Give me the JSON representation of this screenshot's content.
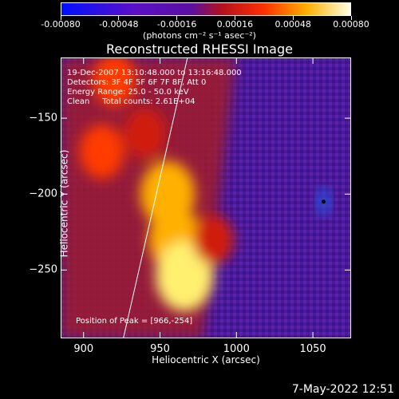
{
  "colorbar": {
    "ticks": [
      "-0.00080",
      "-0.00048",
      "-0.00016",
      "0.00016",
      "0.00048",
      "0.00080"
    ],
    "unit": "(photons cm⁻² s⁻¹ asec⁻²)"
  },
  "chart_data": {
    "type": "heatmap",
    "title": "Reconstructed RHESSI Image",
    "xlabel": "Heliocentric X (arcsec)",
    "ylabel": "Heliocentric Y (arcsec)",
    "xlim": [
      885,
      1075
    ],
    "ylim": [
      -295,
      -110
    ],
    "x_ticks": [
      900,
      950,
      1000,
      1050
    ],
    "y_ticks": [
      -150,
      -200,
      -250
    ],
    "info_lines": [
      "19-Dec-2007 13:10:48.000 to 13:16:48.000",
      "Detectors: 3F 4F 5F 6F 7F 8F, Att 0",
      "Energy Range: 25.0 - 50.0 keV",
      "Clean     Total counts: 2.61E+04"
    ],
    "peak_label": "Position of Peak = [966,-254]",
    "peak": [
      966,
      -254
    ],
    "limb": [
      [
        926,
        -295
      ],
      [
        968,
        -110
      ]
    ],
    "bright_blobs": [
      {
        "x": 912,
        "y": -172,
        "level": 0.55
      },
      {
        "x": 920,
        "y": -125,
        "level": 0.5
      },
      {
        "x": 955,
        "y": -200,
        "level": 0.9
      },
      {
        "x": 960,
        "y": -230,
        "level": 0.85
      },
      {
        "x": 966,
        "y": -254,
        "level": 1.0
      },
      {
        "x": 940,
        "y": -160,
        "level": 0.45
      },
      {
        "x": 985,
        "y": -230,
        "level": 0.4
      }
    ],
    "min_marker": {
      "x": 1057,
      "y": -205
    }
  },
  "timestamp": "7-May-2022 12:51"
}
